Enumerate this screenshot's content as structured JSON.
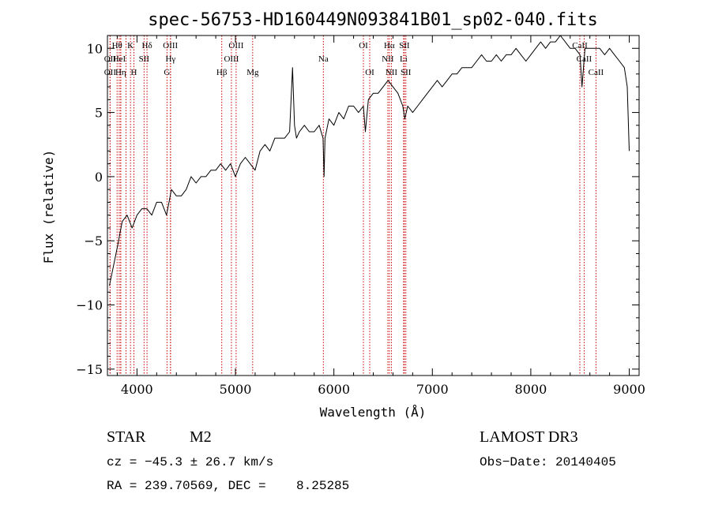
{
  "chart_data": {
    "type": "line",
    "title": "spec-56753-HD160449N093841B01_sp02-040.fits",
    "xlabel": "Wavelength (Å)",
    "ylabel": "Flux (relative)",
    "xlim": [
      3700,
      9100
    ],
    "ylim": [
      -15.5,
      11
    ],
    "x_ticks": [
      4000,
      5000,
      6000,
      7000,
      8000,
      9000
    ],
    "x_tick_labels": [
      "4000",
      "5000",
      "6000",
      "7000",
      "8000",
      "9000"
    ],
    "y_ticks": [
      -15,
      -10,
      -5,
      0,
      5,
      10
    ],
    "y_tick_labels": [
      "−15",
      "−10",
      "−5",
      "0",
      "5",
      "10"
    ],
    "series": [
      {
        "name": "spectrum",
        "x": [
          3720,
          3760,
          3800,
          3850,
          3900,
          3950,
          4000,
          4050,
          4100,
          4150,
          4200,
          4250,
          4300,
          4350,
          4400,
          4450,
          4500,
          4550,
          4600,
          4650,
          4700,
          4750,
          4800,
          4850,
          4900,
          4950,
          5000,
          5050,
          5100,
          5150,
          5200,
          5250,
          5300,
          5350,
          5400,
          5450,
          5500,
          5550,
          5580,
          5600,
          5620,
          5650,
          5700,
          5750,
          5800,
          5850,
          5890,
          5900,
          5910,
          5950,
          6000,
          6050,
          6100,
          6150,
          6200,
          6250,
          6300,
          6320,
          6350,
          6400,
          6450,
          6500,
          6550,
          6600,
          6650,
          6700,
          6720,
          6750,
          6800,
          6850,
          6900,
          6950,
          7000,
          7050,
          7100,
          7150,
          7200,
          7250,
          7300,
          7350,
          7400,
          7450,
          7500,
          7550,
          7600,
          7650,
          7700,
          7750,
          7800,
          7850,
          7900,
          7950,
          8000,
          8050,
          8100,
          8150,
          8200,
          8250,
          8300,
          8350,
          8400,
          8450,
          8500,
          8520,
          8550,
          8600,
          8650,
          8700,
          8750,
          8800,
          8850,
          8900,
          8950,
          8980,
          9000
        ],
        "y": [
          -8.5,
          -7.0,
          -5.5,
          -3.5,
          -3.0,
          -4.0,
          -3.0,
          -2.5,
          -2.5,
          -3.0,
          -2.0,
          -2.0,
          -3.0,
          -1.0,
          -1.5,
          -1.5,
          -1.0,
          0.0,
          -0.5,
          0.0,
          0.0,
          0.5,
          0.5,
          1.0,
          0.5,
          1.0,
          0.0,
          1.0,
          1.5,
          1.0,
          0.5,
          2.0,
          2.5,
          2.0,
          3.0,
          3.0,
          3.0,
          3.5,
          8.5,
          4.0,
          3.0,
          3.5,
          4.0,
          3.5,
          3.5,
          4.0,
          3.0,
          0.0,
          3.0,
          4.5,
          4.0,
          5.0,
          4.5,
          5.5,
          5.5,
          5.0,
          5.5,
          3.5,
          6.0,
          6.5,
          6.5,
          7.0,
          7.5,
          7.0,
          6.5,
          5.5,
          4.5,
          5.5,
          5.0,
          5.5,
          6.0,
          6.5,
          7.0,
          7.5,
          7.0,
          7.5,
          8.0,
          8.0,
          8.5,
          8.5,
          8.5,
          9.0,
          9.5,
          9.0,
          9.0,
          9.5,
          9.0,
          9.5,
          9.5,
          10.0,
          9.5,
          9.0,
          9.5,
          10.0,
          10.5,
          10.0,
          10.5,
          10.5,
          11.0,
          10.5,
          10.0,
          10.0,
          9.5,
          7.0,
          10.0,
          10.0,
          10.0,
          10.0,
          9.5,
          10.0,
          9.5,
          9.0,
          8.5,
          7.0,
          2.0
        ]
      }
    ],
    "line_markers": [
      {
        "wavelength": 3798,
        "label": "Hθ",
        "row": 0
      },
      {
        "wavelength": 3835,
        "label": "",
        "row": 0
      },
      {
        "wavelength": 3889,
        "label": "",
        "row": 0
      },
      {
        "wavelength": 3934,
        "label": "K",
        "row": 0
      },
      {
        "wavelength": 3969,
        "label": "",
        "row": 0
      },
      {
        "wavelength": 4102,
        "label": "Hδ",
        "row": 0
      },
      {
        "wavelength": 4340,
        "label": "OIII",
        "row": 0
      },
      {
        "wavelength": 5007,
        "label": "OIII",
        "row": 0
      },
      {
        "wavelength": 6300,
        "label": "OI",
        "row": 0
      },
      {
        "wavelength": 6563,
        "label": "Hα",
        "row": 0
      },
      {
        "wavelength": 6716,
        "label": "SII",
        "row": 0
      },
      {
        "wavelength": 8498,
        "label": "CaII",
        "row": 0
      },
      {
        "wavelength": 3727,
        "label": "OII",
        "row": 1
      },
      {
        "wavelength": 3820,
        "label": "HeI",
        "row": 1
      },
      {
        "wavelength": 4072,
        "label": "SII",
        "row": 1
      },
      {
        "wavelength": 4341,
        "label": "Hγ",
        "row": 1
      },
      {
        "wavelength": 4959,
        "label": "OIII",
        "row": 1
      },
      {
        "wavelength": 5893,
        "label": "Na",
        "row": 1
      },
      {
        "wavelength": 6548,
        "label": "NII",
        "row": 1
      },
      {
        "wavelength": 6708,
        "label": "Li",
        "row": 1
      },
      {
        "wavelength": 8542,
        "label": "CaII",
        "row": 1
      },
      {
        "wavelength": 3727,
        "label": "OII",
        "row": 2
      },
      {
        "wavelength": 3835,
        "label": "Hη",
        "row": 2
      },
      {
        "wavelength": 3969,
        "label": "H",
        "row": 2
      },
      {
        "wavelength": 4305,
        "label": "G",
        "row": 2
      },
      {
        "wavelength": 4861,
        "label": "Hβ",
        "row": 2
      },
      {
        "wavelength": 5175,
        "label": "Mg",
        "row": 2
      },
      {
        "wavelength": 6364,
        "label": "OI",
        "row": 2
      },
      {
        "wavelength": 6584,
        "label": "NII",
        "row": 2
      },
      {
        "wavelength": 6731,
        "label": "SII",
        "row": 2
      },
      {
        "wavelength": 8662,
        "label": "CaII",
        "row": 2
      }
    ],
    "marker_color": "#cc0000",
    "line_color": "#000000"
  },
  "info": {
    "object_class": "STAR",
    "subclass": "M2",
    "survey": "LAMOST DR3",
    "cz": "cz = −45.3 ± 26.7 km/s",
    "obs_date": "Obs−Date: 20140405",
    "radec": "RA = 239.70569, DEC =    8.25285"
  }
}
